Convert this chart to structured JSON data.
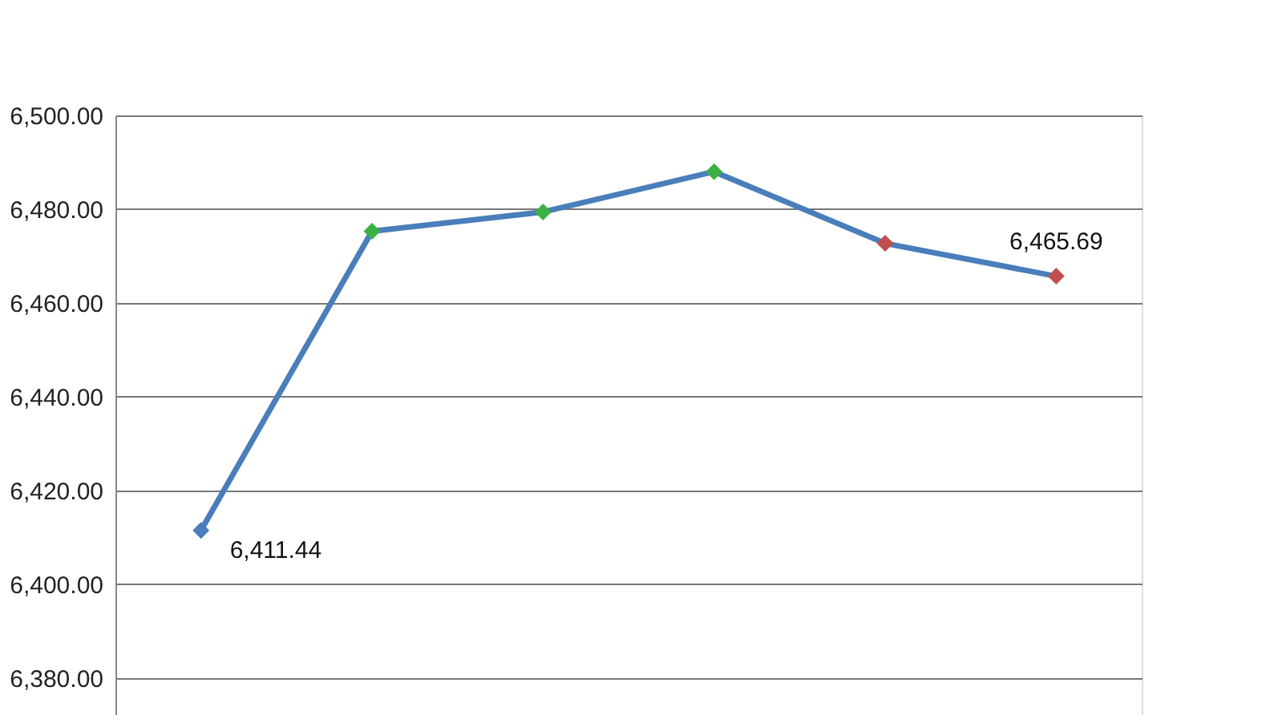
{
  "chart_data": {
    "type": "line",
    "categories": [
      null,
      null,
      null,
      null,
      null,
      null
    ],
    "series": [
      {
        "color": "#4a7ebb",
        "values": [
          6411.44,
          6475.3,
          6479.4,
          6488,
          6472.7,
          6465.69
        ],
        "colors": [
          "#4a7ebb",
          "#3cb043",
          "#3cb043",
          "#3cb043",
          "#c0504d",
          "#c0504d"
        ],
        "value_labels": [
          "6,411.44",
          null,
          null,
          null,
          null,
          "6,465.69"
        ]
      }
    ],
    "ylim": [
      6370,
      6500
    ],
    "yticks": [
      {
        "value": 6380,
        "label": "6,380.00"
      },
      {
        "value": 6400,
        "label": "6,400.00"
      },
      {
        "value": 6420,
        "label": "6,420.00"
      },
      {
        "value": 6440,
        "label": "6,440.00"
      },
      {
        "value": 6460,
        "label": "6,460.00"
      },
      {
        "value": 6480,
        "label": "6,480.00"
      },
      {
        "value": 6500,
        "label": "6,500.00"
      }
    ],
    "grid": "y",
    "marker": "diamond",
    "tick_labels": "y"
  }
}
